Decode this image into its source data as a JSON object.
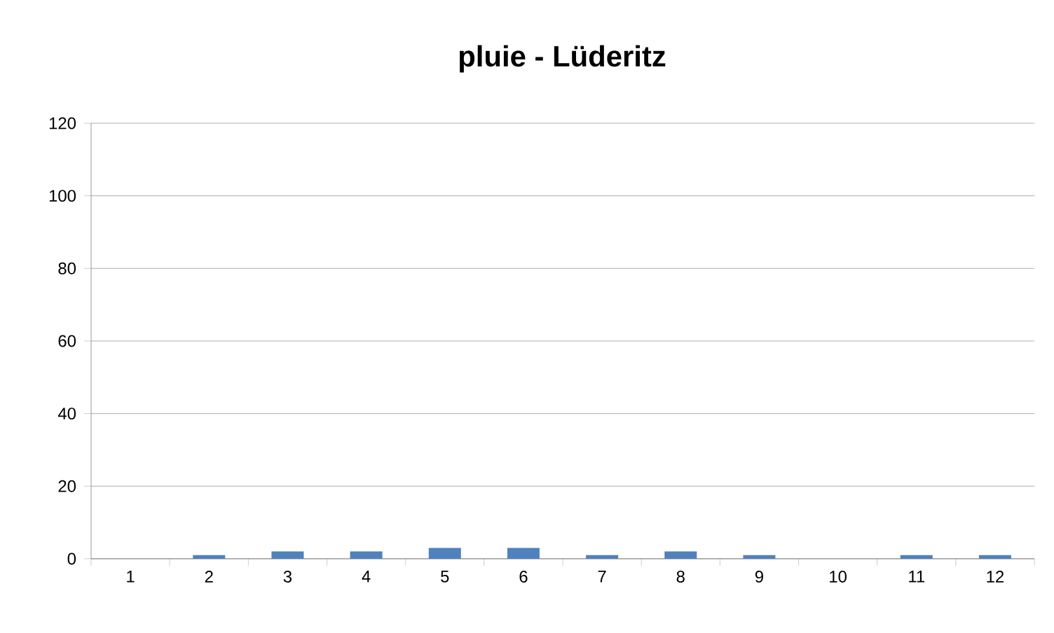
{
  "chart_data": {
    "type": "bar",
    "title": "pluie - Lüderitz",
    "categories": [
      "1",
      "2",
      "3",
      "4",
      "5",
      "6",
      "7",
      "8",
      "9",
      "10",
      "11",
      "12"
    ],
    "values": [
      0,
      1,
      2,
      2,
      3,
      3,
      1,
      2,
      1,
      0,
      1,
      1
    ],
    "color": "#4f81bd",
    "ylim": [
      0,
      120
    ],
    "yticks": [
      0,
      20,
      40,
      60,
      80,
      100,
      120
    ],
    "grid": "y"
  }
}
